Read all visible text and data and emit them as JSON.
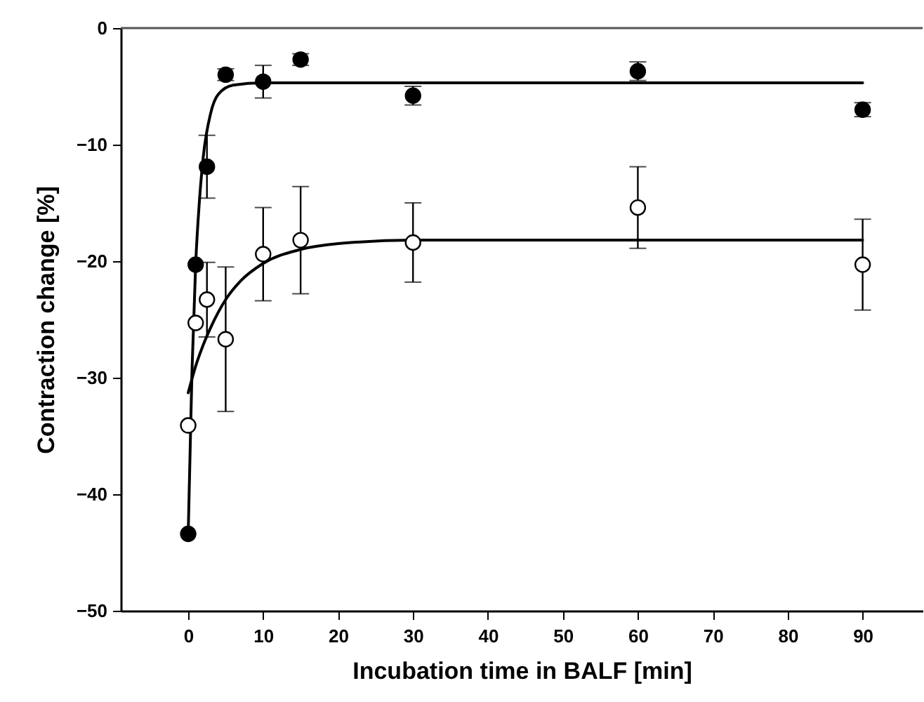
{
  "chart_data": {
    "type": "scatter",
    "xlabel": "Incubation time in BALF [min]",
    "ylabel": "Contraction change [%]",
    "xlim": [
      -9,
      98
    ],
    "xticks": [
      0,
      10,
      20,
      30,
      40,
      50,
      60,
      70,
      80,
      90
    ],
    "ylim": [
      -50,
      0
    ],
    "yticks": [
      -50,
      -40,
      -30,
      -20,
      -10,
      0
    ],
    "marker": "circle",
    "grid": false,
    "series": [
      {
        "type": "line",
        "marker": "none",
        "color": "#000000",
        "x": [
          0,
          0.5,
          1,
          1.5,
          2,
          3,
          4,
          6,
          10,
          90
        ],
        "values": [
          -43.4,
          -29.5,
          -20.2,
          -14.8,
          -11.1,
          -7.3,
          -5.7,
          -4.9,
          -4.7,
          -4.7
        ]
      },
      {
        "type": "line",
        "marker": "none",
        "color": "#000000",
        "x": [
          0,
          1,
          2,
          3,
          5,
          7,
          10,
          15,
          20,
          30,
          90
        ],
        "values": [
          -31.3,
          -29.0,
          -27.2,
          -25.7,
          -23.3,
          -21.7,
          -20.2,
          -19.0,
          -18.5,
          -18.2,
          -18.2
        ]
      },
      {
        "color": "#000000",
        "x": [
          0,
          1,
          2.5,
          5,
          10,
          15,
          30,
          60,
          90
        ],
        "values": [
          -43.4,
          -20.3,
          -11.9,
          -4.0,
          -4.6,
          -2.7,
          -5.8,
          -3.7,
          -7.0
        ],
        "errors": [
          null,
          null,
          2.7,
          0.5,
          1.4,
          0.5,
          0.8,
          0.8,
          0.6
        ]
      },
      {
        "color": "#ffffff",
        "x": [
          0,
          1,
          2.5,
          5,
          10,
          15,
          30,
          60,
          90
        ],
        "values": [
          -34.1,
          -25.3,
          -23.3,
          -26.7,
          -19.4,
          -18.2,
          -18.4,
          -15.4,
          -20.3
        ],
        "errors": [
          null,
          null,
          3.2,
          6.2,
          4.0,
          4.6,
          3.4,
          3.5,
          3.9
        ]
      }
    ]
  }
}
